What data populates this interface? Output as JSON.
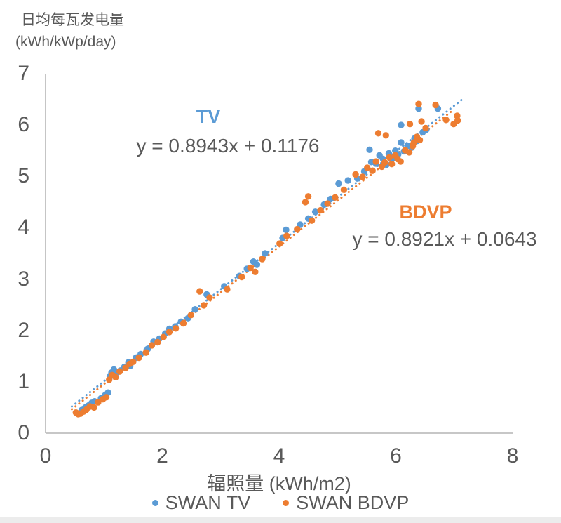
{
  "header": {
    "y_axis_title_line1": "日均每瓦发电量",
    "y_axis_title_line2": "(kWh/kWp/day)"
  },
  "annotations": {
    "tv_label": "TV",
    "tv_equation": "y = 0.8943x + 0.1176",
    "bdvp_label": "BDVP",
    "bdvp_equation": "y = 0.8921x + 0.0643"
  },
  "legend": {
    "items": [
      {
        "label": "SWAN TV",
        "color": "#5B9BD5"
      },
      {
        "label": "SWAN BDVP",
        "color": "#ED7D31"
      }
    ]
  },
  "colors": {
    "tv_blue": "#5B9BD5",
    "bdvp_orange": "#ED7D31",
    "axis_line": "#BFBFBF",
    "text_gray": "#595959"
  },
  "chart_data": {
    "type": "scatter",
    "title": "",
    "xlabel": "辐照量 (kWh/m2)",
    "ylabel": "日均每瓦发电量 (kWh/kWp/day)",
    "xlim": [
      0,
      8
    ],
    "ylim": [
      0,
      7
    ],
    "x_ticks": [
      0,
      2,
      4,
      6,
      8
    ],
    "y_ticks": [
      0,
      1,
      2,
      3,
      4,
      5,
      6,
      7
    ],
    "grid": false,
    "legend_position": "bottom",
    "series": [
      {
        "name": "SWAN TV",
        "color": "#5B9BD5",
        "trendline": {
          "style": "dotted",
          "slope": 0.8943,
          "intercept": 0.1176,
          "equation": "y = 0.8943x + 0.1176",
          "x_range": [
            0.45,
            7.15
          ]
        },
        "points": [
          [
            0.62,
            0.45
          ],
          [
            0.68,
            0.5
          ],
          [
            0.74,
            0.54
          ],
          [
            0.79,
            0.59
          ],
          [
            0.84,
            0.62
          ],
          [
            0.95,
            0.68
          ],
          [
            1.02,
            0.74
          ],
          [
            1.07,
            0.79
          ],
          [
            1.1,
            1.1
          ],
          [
            1.13,
            1.18
          ],
          [
            1.17,
            1.24
          ],
          [
            1.22,
            1.18
          ],
          [
            1.28,
            1.22
          ],
          [
            1.35,
            1.29
          ],
          [
            1.42,
            1.38
          ],
          [
            1.45,
            1.31
          ],
          [
            1.55,
            1.47
          ],
          [
            1.63,
            1.54
          ],
          [
            1.75,
            1.64
          ],
          [
            1.85,
            1.78
          ],
          [
            1.95,
            1.84
          ],
          [
            2.05,
            1.94
          ],
          [
            2.12,
            2.03
          ],
          [
            2.22,
            2.08
          ],
          [
            2.32,
            2.17
          ],
          [
            2.44,
            2.24
          ],
          [
            2.56,
            2.41
          ],
          [
            2.76,
            2.7
          ],
          [
            3.06,
            2.86
          ],
          [
            3.32,
            3.06
          ],
          [
            3.45,
            3.2
          ],
          [
            3.56,
            3.34
          ],
          [
            3.62,
            3.28
          ],
          [
            3.76,
            3.5
          ],
          [
            4.06,
            3.8
          ],
          [
            4.12,
            3.96
          ],
          [
            4.36,
            4.06
          ],
          [
            4.5,
            4.18
          ],
          [
            4.62,
            4.31
          ],
          [
            4.77,
            4.45
          ],
          [
            4.88,
            4.56
          ],
          [
            5.02,
            4.86
          ],
          [
            5.18,
            4.92
          ],
          [
            5.34,
            4.96
          ],
          [
            5.46,
            5.1
          ],
          [
            5.55,
            5.52
          ],
          [
            5.58,
            5.28
          ],
          [
            5.66,
            5.25
          ],
          [
            5.72,
            5.41
          ],
          [
            5.78,
            5.34
          ],
          [
            5.84,
            5.23
          ],
          [
            5.88,
            5.45
          ],
          [
            5.93,
            5.33
          ],
          [
            5.99,
            5.5
          ],
          [
            6.04,
            5.43
          ],
          [
            6.09,
            5.66
          ],
          [
            6.09,
            6.0
          ],
          [
            6.14,
            5.49
          ],
          [
            6.2,
            5.6
          ],
          [
            6.27,
            5.56
          ],
          [
            6.32,
            5.74
          ],
          [
            6.36,
            5.69
          ],
          [
            6.39,
            6.32
          ],
          [
            6.46,
            5.86
          ],
          [
            6.52,
            5.91
          ],
          [
            6.72,
            6.32
          ]
        ]
      },
      {
        "name": "SWAN BDVP",
        "color": "#ED7D31",
        "trendline": {
          "style": "dotted",
          "slope": 0.8921,
          "intercept": 0.0643,
          "equation": "y = 0.8921x + 0.0643",
          "x_range": [
            0.45,
            7.0
          ]
        },
        "points": [
          [
            0.52,
            0.4
          ],
          [
            0.56,
            0.37
          ],
          [
            0.6,
            0.38
          ],
          [
            0.65,
            0.42
          ],
          [
            0.7,
            0.46
          ],
          [
            0.76,
            0.52
          ],
          [
            0.83,
            0.5
          ],
          [
            0.9,
            0.6
          ],
          [
            0.98,
            0.66
          ],
          [
            1.04,
            0.7
          ],
          [
            1.09,
            1.04
          ],
          [
            1.14,
            1.13
          ],
          [
            1.2,
            1.09
          ],
          [
            1.27,
            1.2
          ],
          [
            1.37,
            1.27
          ],
          [
            1.44,
            1.35
          ],
          [
            1.5,
            1.39
          ],
          [
            1.6,
            1.47
          ],
          [
            1.72,
            1.57
          ],
          [
            1.82,
            1.71
          ],
          [
            1.92,
            1.77
          ],
          [
            2.02,
            1.87
          ],
          [
            2.12,
            1.97
          ],
          [
            2.23,
            2.04
          ],
          [
            2.36,
            2.14
          ],
          [
            2.49,
            2.3
          ],
          [
            2.64,
            2.76
          ],
          [
            2.71,
            2.49
          ],
          [
            2.81,
            2.64
          ],
          [
            3.11,
            2.8
          ],
          [
            3.36,
            3.04
          ],
          [
            3.51,
            3.22
          ],
          [
            3.59,
            3.14
          ],
          [
            3.71,
            3.39
          ],
          [
            4.01,
            3.69
          ],
          [
            4.13,
            3.84
          ],
          [
            4.31,
            3.97
          ],
          [
            4.45,
            4.5
          ],
          [
            4.5,
            4.61
          ],
          [
            4.56,
            4.14
          ],
          [
            4.71,
            4.34
          ],
          [
            4.83,
            4.47
          ],
          [
            4.96,
            4.59
          ],
          [
            5.11,
            4.74
          ],
          [
            5.31,
            5.04
          ],
          [
            5.43,
            4.99
          ],
          [
            5.51,
            5.17
          ],
          [
            5.6,
            5.11
          ],
          [
            5.66,
            5.29
          ],
          [
            5.7,
            5.84
          ],
          [
            5.76,
            5.19
          ],
          [
            5.81,
            5.27
          ],
          [
            5.83,
            5.8
          ],
          [
            5.89,
            5.37
          ],
          [
            5.93,
            5.24
          ],
          [
            5.99,
            5.41
          ],
          [
            6.03,
            5.34
          ],
          [
            6.08,
            5.29
          ],
          [
            6.16,
            5.51
          ],
          [
            6.23,
            5.47
          ],
          [
            6.29,
            5.59
          ],
          [
            6.31,
            5.66
          ],
          [
            6.36,
            5.77
          ],
          [
            6.41,
            5.71
          ],
          [
            6.39,
            6.41
          ],
          [
            6.44,
            6.07
          ],
          [
            6.24,
            6.02
          ],
          [
            6.51,
            5.94
          ],
          [
            6.68,
            6.39
          ],
          [
            6.86,
            6.1
          ],
          [
            6.99,
            6.02
          ],
          [
            7.05,
            6.18
          ],
          [
            7.06,
            6.09
          ]
        ]
      }
    ]
  }
}
